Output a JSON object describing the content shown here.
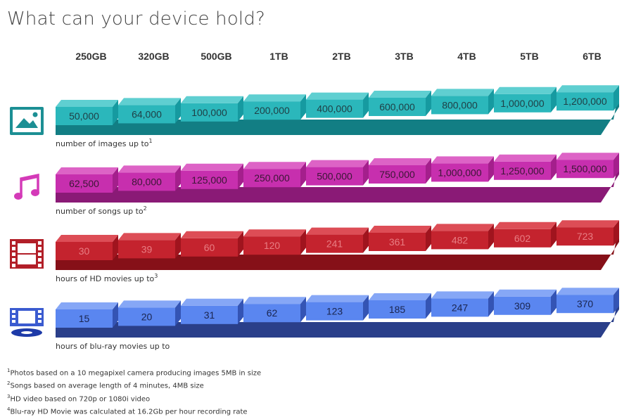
{
  "title": "What can your device hold?",
  "chart_data": {
    "type": "bar",
    "categories": [
      "250GB",
      "320GB",
      "500GB",
      "1TB",
      "2TB",
      "3TB",
      "4TB",
      "5TB",
      "6TB"
    ],
    "series": [
      {
        "key": "images",
        "label": "number of images up to",
        "sup": "1",
        "icon": "picture-icon",
        "colors": {
          "front": "#2bb7bb",
          "top": "#5fcfd1",
          "side": "#169aa0",
          "shade": "#127e84",
          "text": "#1f3f45"
        },
        "values": [
          50000,
          64000,
          100000,
          200000,
          400000,
          600000,
          800000,
          1000000,
          1200000
        ],
        "labels": [
          "50,000",
          "64,000",
          "100,000",
          "200,000",
          "400,000",
          "600,000",
          "800,000",
          "1,000,000",
          "1,200,000"
        ]
      },
      {
        "key": "songs",
        "label": "number of songs up to",
        "sup": "2",
        "icon": "music-note-icon",
        "colors": {
          "front": "#c72fae",
          "top": "#dd63c6",
          "side": "#a41f8c",
          "shade": "#8a1a76",
          "text": "#3c1636"
        },
        "values": [
          62500,
          80000,
          125000,
          250000,
          500000,
          750000,
          1000000,
          1250000,
          1500000
        ],
        "labels": [
          "62,500",
          "80,000",
          "125,000",
          "250,000",
          "500,000",
          "750,000",
          "1,000,000",
          "1,250,000",
          "1,500,000"
        ]
      },
      {
        "key": "hd_movies",
        "label": "hours of HD movies up to",
        "sup": "3",
        "icon": "film-strip-icon",
        "colors": {
          "front": "#c4232e",
          "top": "#dd4d56",
          "side": "#a0141e",
          "shade": "#861018",
          "text": "#e87d83"
        },
        "values": [
          30,
          39,
          60,
          120,
          241,
          361,
          482,
          602,
          723
        ],
        "labels": [
          "30",
          "39",
          "60",
          "120",
          "241",
          "361",
          "482",
          "602",
          "723"
        ]
      },
      {
        "key": "bluray",
        "label": "hours of blu-ray movies up to",
        "sup": "",
        "icon": "bluray-icon",
        "colors": {
          "front": "#5a86f0",
          "top": "#86a7f6",
          "side": "#3454b4",
          "shade": "#2a3f8a",
          "text": "#1a2550"
        },
        "values": [
          15,
          20,
          31,
          62,
          123,
          185,
          247,
          309,
          370
        ],
        "labels": [
          "15",
          "20",
          "31",
          "62",
          "123",
          "185",
          "247",
          "309",
          "370"
        ]
      }
    ]
  },
  "footnotes": {
    "n1": {
      "sup": "1",
      "text": "Photos based on a 10 megapixel camera producing images 5MB in size"
    },
    "n2": {
      "sup": "2",
      "text": "Songs based on average length of 4 minutes, 4MB size"
    },
    "n3": {
      "sup": "3",
      "text": "HD video based on 720p or 1080i video"
    },
    "n4": {
      "sup": "4",
      "text": "Blu-ray HD Movie was calculated at 16.2Gb per hour recording rate"
    }
  }
}
